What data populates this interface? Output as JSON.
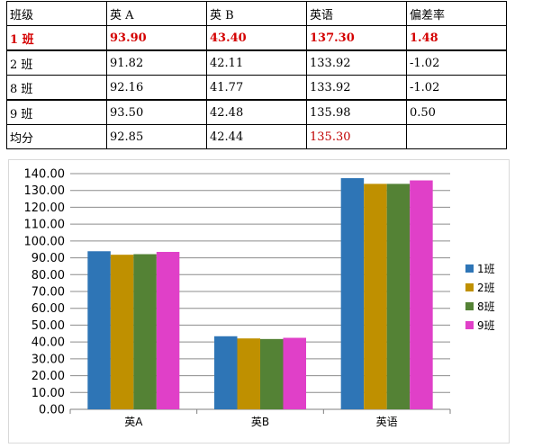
{
  "table": {
    "headers": [
      "班级",
      "英 A",
      "英 B",
      "英语",
      "偏差率"
    ],
    "rows": [
      {
        "cells": [
          "1 班",
          "93.90",
          "43.40",
          "137.30",
          "1.48"
        ]
      },
      {
        "cells": [
          "2 班",
          "91.82",
          "42.11",
          "133.92",
          "-1.02"
        ]
      },
      {
        "cells": [
          "8 班",
          "92.16",
          "41.77",
          "133.92",
          "-1.02"
        ]
      },
      {
        "cells": [
          "9 班",
          "93.50",
          "42.48",
          "135.98",
          "0.50"
        ]
      },
      {
        "cells": [
          "均分",
          "92.85",
          "42.44",
          "135.30",
          ""
        ]
      }
    ],
    "highlight_color": "#d40000"
  },
  "chart_data": {
    "type": "bar",
    "categories": [
      "英A",
      "英B",
      "英语"
    ],
    "series": [
      {
        "name": "1班",
        "color": "#2e75b6",
        "values": [
          93.9,
          43.4,
          137.3
        ]
      },
      {
        "name": "2班",
        "color": "#bf9000",
        "values": [
          91.82,
          42.11,
          133.92
        ]
      },
      {
        "name": "8班",
        "color": "#548235",
        "values": [
          92.16,
          41.77,
          133.92
        ]
      },
      {
        "name": "9班",
        "color": "#e040c8",
        "values": [
          93.5,
          42.48,
          135.98
        ]
      }
    ],
    "ylim": [
      0,
      140
    ],
    "ytick_step": 10,
    "ytick_labels": [
      "0.00",
      "10.00",
      "20.00",
      "30.00",
      "40.00",
      "50.00",
      "60.00",
      "70.00",
      "80.00",
      "90.00",
      "100.00",
      "110.00",
      "120.00",
      "130.00",
      "140.00"
    ],
    "grid": true,
    "legend": "right"
  }
}
